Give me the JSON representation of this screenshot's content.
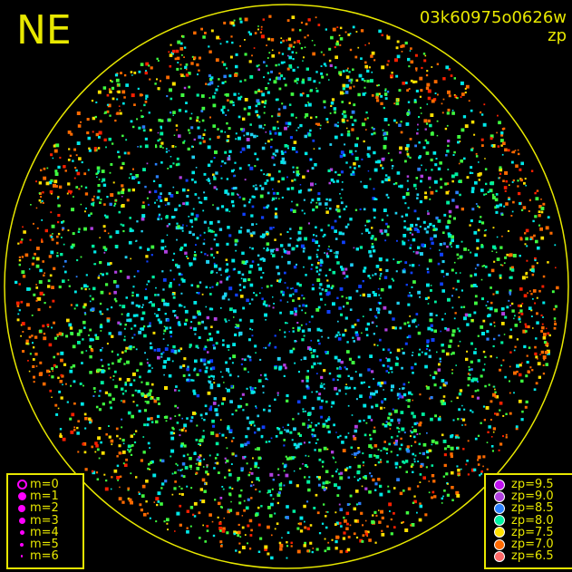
{
  "header": {
    "direction": "NE",
    "image_id": "03k60975o0626w",
    "color_key": "zp"
  },
  "chart_data": {
    "type": "scatter",
    "title": "",
    "grid": false,
    "magnitude_legend": {
      "placement": "bottom-left",
      "color": "#ff00ff",
      "items": [
        {
          "label": "m=0",
          "hollow": true
        },
        {
          "label": "m=1"
        },
        {
          "label": "m=2"
        },
        {
          "label": "m=3"
        },
        {
          "label": "m=4"
        },
        {
          "label": "m=5"
        },
        {
          "label": "m=6"
        }
      ]
    },
    "zp_legend": {
      "placement": "bottom-right",
      "items": [
        {
          "label": "zp=9.5",
          "color": "#c010f0"
        },
        {
          "label": "zp=9.0",
          "color": "#b040e0"
        },
        {
          "label": "zp=8.5",
          "color": "#2a80ff"
        },
        {
          "label": "zp=8.0",
          "color": "#00f0a0"
        },
        {
          "label": "zp=7.5",
          "color": "#ffe000"
        },
        {
          "label": "zp=7.0",
          "color": "#ff6a00"
        },
        {
          "label": "zp=6.5",
          "color": "#ff6868"
        }
      ]
    },
    "horizon_color": "#e8e800"
  }
}
